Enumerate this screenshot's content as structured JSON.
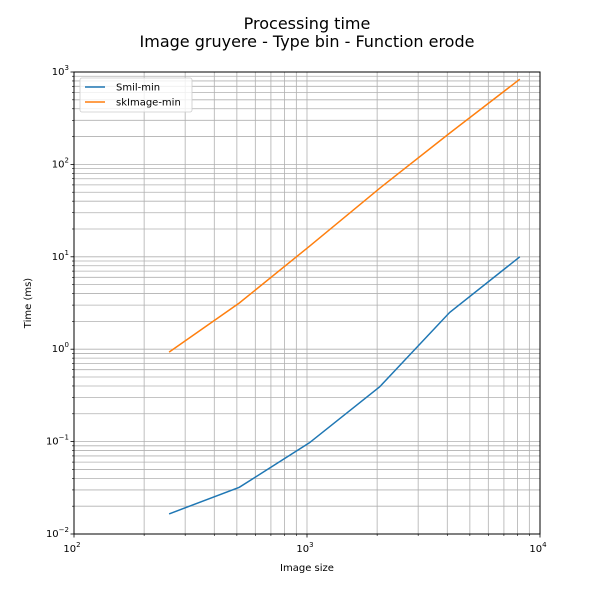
{
  "chart_data": {
    "type": "line",
    "title": "Processing time",
    "subtitle": "Image gruyere - Type bin - Function erode",
    "xlabel": "Image size",
    "ylabel": "Time (ms)",
    "xscale": "log",
    "yscale": "log",
    "xlim": [
      100,
      10000
    ],
    "ylim": [
      0.01,
      1000
    ],
    "grid": "both",
    "legend_position": "top-left",
    "x_tick_labels": [
      {
        "base": "10",
        "exp": "2",
        "value": 100
      },
      {
        "base": "10",
        "exp": "3",
        "value": 1000
      },
      {
        "base": "10",
        "exp": "4",
        "value": 10000
      }
    ],
    "y_tick_labels": [
      {
        "base": "10",
        "exp": "−2",
        "value": 0.01
      },
      {
        "base": "10",
        "exp": "−1",
        "value": 0.1
      },
      {
        "base": "10",
        "exp": "0",
        "value": 1
      },
      {
        "base": "10",
        "exp": "1",
        "value": 10
      },
      {
        "base": "10",
        "exp": "2",
        "value": 100
      },
      {
        "base": "10",
        "exp": "3",
        "value": 1000
      }
    ],
    "x": [
      256,
      512,
      1024,
      2048,
      4096,
      8192
    ],
    "series": [
      {
        "name": "Smil-min",
        "color": "#1f77b4",
        "values": [
          0.0165,
          0.032,
          0.097,
          0.39,
          2.5,
          10.0
        ]
      },
      {
        "name": "skImage-min",
        "color": "#ff7f0e",
        "values": [
          0.93,
          3.16,
          13.0,
          55.0,
          218.0,
          835.0
        ]
      }
    ]
  }
}
